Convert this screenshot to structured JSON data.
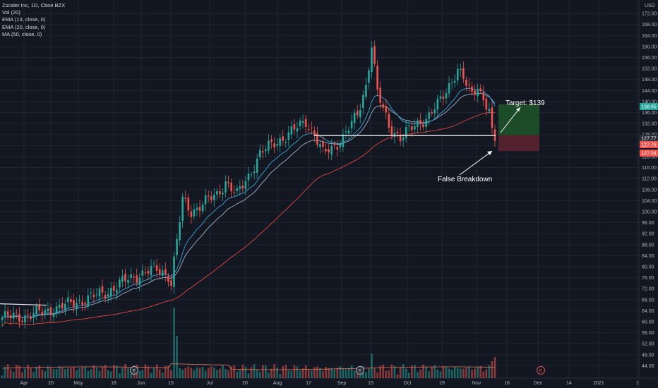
{
  "legend": {
    "title": "Zscaler Inc, 1D, Cboe BZX",
    "indicators": [
      "Vol (20)",
      "EMA (13, close, 0)",
      "EMA (20, close, 0)",
      "MA (50, close, 0)"
    ]
  },
  "currency_label": "USD",
  "colors": {
    "background": "#131722",
    "grid": "#1f2430",
    "up": "#26a69a",
    "down": "#ef5350",
    "ema13": "#3aa3d6",
    "ema20": "#9ab3c7",
    "ma50": "#e0473c",
    "target_zone": "#1e5128",
    "stop_zone": "#5b2330",
    "level_line": "#e6e6e6",
    "text": "#d1d4dc"
  },
  "chart_data": {
    "type": "candlestick",
    "ylim": [
      40,
      176
    ],
    "y_ticks": [
      44,
      48,
      52,
      56,
      60,
      64,
      68,
      72,
      76,
      80,
      84,
      88,
      92,
      96,
      100,
      104,
      108,
      112,
      116,
      120,
      124,
      128,
      132,
      136,
      140,
      144,
      148,
      152,
      156,
      160,
      164,
      168,
      172
    ],
    "x_tick_labels": [
      "Apr",
      "20",
      "May",
      "18",
      "Jun",
      "15",
      "Jul",
      "20",
      "Aug",
      "17",
      "Sep",
      "15",
      "Oct",
      "19",
      "Nov",
      "16",
      "Dec",
      "14",
      "2021",
      "1"
    ],
    "price_badges": [
      {
        "value": "138.95",
        "color": "#26a69a"
      },
      {
        "value": "127.77",
        "color": "#2a2e39"
      },
      {
        "value": "127.76",
        "color": "#ef5350"
      },
      {
        "value": "127.04",
        "color": "#ef5350"
      }
    ],
    "support_level": 127.6,
    "annotations": [
      {
        "text": "Target: $139",
        "kind": "arrow-label"
      },
      {
        "text": "False Breakdown",
        "kind": "arrow-label"
      }
    ],
    "earnings_markers": [
      "E",
      "E",
      "E"
    ],
    "trade_zone": {
      "entry": 127.8,
      "target": 139,
      "stop": 122
    }
  }
}
